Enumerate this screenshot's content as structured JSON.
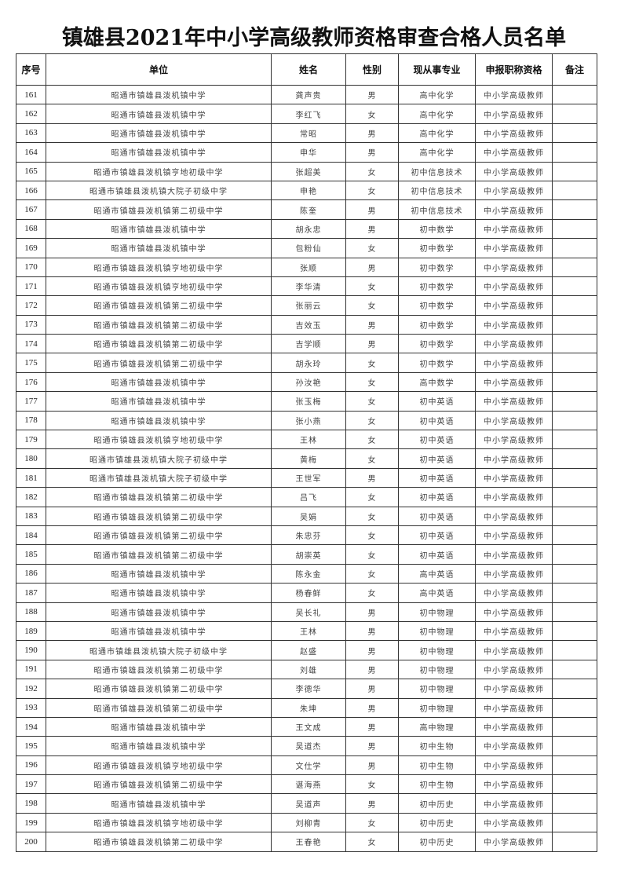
{
  "title": "镇雄县2021年中小学高级教师资格审查合格人员名单",
  "headers": [
    "序号",
    "单位",
    "姓名",
    "性别",
    "现从事专业",
    "申报职称资格",
    "备注"
  ],
  "rows": [
    [
      "161",
      "昭通市镇雄县泼机镇中学",
      "龚声贵",
      "男",
      "高中化学",
      "中小学高级教师",
      ""
    ],
    [
      "162",
      "昭通市镇雄县泼机镇中学",
      "李红飞",
      "女",
      "高中化学",
      "中小学高级教师",
      ""
    ],
    [
      "163",
      "昭通市镇雄县泼机镇中学",
      "常昭",
      "男",
      "高中化学",
      "中小学高级教师",
      ""
    ],
    [
      "164",
      "昭通市镇雄县泼机镇中学",
      "申华",
      "男",
      "高中化学",
      "中小学高级教师",
      ""
    ],
    [
      "165",
      "昭通市镇雄县泼机镇亨地初级中学",
      "张超美",
      "女",
      "初中信息技术",
      "中小学高级教师",
      ""
    ],
    [
      "166",
      "昭通市镇雄县泼机镇大院子初级中学",
      "申艳",
      "女",
      "初中信息技术",
      "中小学高级教师",
      ""
    ],
    [
      "167",
      "昭通市镇雄县泼机镇第二初级中学",
      "陈奎",
      "男",
      "初中信息技术",
      "中小学高级教师",
      ""
    ],
    [
      "168",
      "昭通市镇雄县泼机镇中学",
      "胡永忠",
      "男",
      "初中数学",
      "中小学高级教师",
      ""
    ],
    [
      "169",
      "昭通市镇雄县泼机镇中学",
      "包粉仙",
      "女",
      "初中数学",
      "中小学高级教师",
      ""
    ],
    [
      "170",
      "昭通市镇雄县泼机镇亨地初级中学",
      "张顺",
      "男",
      "初中数学",
      "中小学高级教师",
      ""
    ],
    [
      "171",
      "昭通市镇雄县泼机镇亨地初级中学",
      "李华清",
      "女",
      "初中数学",
      "中小学高级教师",
      ""
    ],
    [
      "172",
      "昭通市镇雄县泼机镇第二初级中学",
      "张丽云",
      "女",
      "初中数学",
      "中小学高级教师",
      ""
    ],
    [
      "173",
      "昭通市镇雄县泼机镇第二初级中学",
      "吉效玉",
      "男",
      "初中数学",
      "中小学高级教师",
      ""
    ],
    [
      "174",
      "昭通市镇雄县泼机镇第二初级中学",
      "吉学顺",
      "男",
      "初中数学",
      "中小学高级教师",
      ""
    ],
    [
      "175",
      "昭通市镇雄县泼机镇第二初级中学",
      "胡永玲",
      "女",
      "初中数学",
      "中小学高级教师",
      ""
    ],
    [
      "176",
      "昭通市镇雄县泼机镇中学",
      "孙汝艳",
      "女",
      "高中数学",
      "中小学高级教师",
      ""
    ],
    [
      "177",
      "昭通市镇雄县泼机镇中学",
      "张玉梅",
      "女",
      "初中英语",
      "中小学高级教师",
      ""
    ],
    [
      "178",
      "昭通市镇雄县泼机镇中学",
      "张小燕",
      "女",
      "初中英语",
      "中小学高级教师",
      ""
    ],
    [
      "179",
      "昭通市镇雄县泼机镇亨地初级中学",
      "王林",
      "女",
      "初中英语",
      "中小学高级教师",
      ""
    ],
    [
      "180",
      "昭通市镇雄县泼机镇大院子初级中学",
      "黄梅",
      "女",
      "初中英语",
      "中小学高级教师",
      ""
    ],
    [
      "181",
      "昭通市镇雄县泼机镇大院子初级中学",
      "王世军",
      "男",
      "初中英语",
      "中小学高级教师",
      ""
    ],
    [
      "182",
      "昭通市镇雄县泼机镇第二初级中学",
      "吕飞",
      "女",
      "初中英语",
      "中小学高级教师",
      ""
    ],
    [
      "183",
      "昭通市镇雄县泼机镇第二初级中学",
      "吴娟",
      "女",
      "初中英语",
      "中小学高级教师",
      ""
    ],
    [
      "184",
      "昭通市镇雄县泼机镇第二初级中学",
      "朱忠芬",
      "女",
      "初中英语",
      "中小学高级教师",
      ""
    ],
    [
      "185",
      "昭通市镇雄县泼机镇第二初级中学",
      "胡崇英",
      "女",
      "初中英语",
      "中小学高级教师",
      ""
    ],
    [
      "186",
      "昭通市镇雄县泼机镇中学",
      "陈永金",
      "女",
      "高中英语",
      "中小学高级教师",
      ""
    ],
    [
      "187",
      "昭通市镇雄县泼机镇中学",
      "杨春鲜",
      "女",
      "高中英语",
      "中小学高级教师",
      ""
    ],
    [
      "188",
      "昭通市镇雄县泼机镇中学",
      "吴长礼",
      "男",
      "初中物理",
      "中小学高级教师",
      ""
    ],
    [
      "189",
      "昭通市镇雄县泼机镇中学",
      "王林",
      "男",
      "初中物理",
      "中小学高级教师",
      ""
    ],
    [
      "190",
      "昭通市镇雄县泼机镇大院子初级中学",
      "赵盛",
      "男",
      "初中物理",
      "中小学高级教师",
      ""
    ],
    [
      "191",
      "昭通市镇雄县泼机镇第二初级中学",
      "刘雄",
      "男",
      "初中物理",
      "中小学高级教师",
      ""
    ],
    [
      "192",
      "昭通市镇雄县泼机镇第二初级中学",
      "李德华",
      "男",
      "初中物理",
      "中小学高级教师",
      ""
    ],
    [
      "193",
      "昭通市镇雄县泼机镇第二初级中学",
      "朱坤",
      "男",
      "初中物理",
      "中小学高级教师",
      ""
    ],
    [
      "194",
      "昭通市镇雄县泼机镇中学",
      "王文成",
      "男",
      "高中物理",
      "中小学高级教师",
      ""
    ],
    [
      "195",
      "昭通市镇雄县泼机镇中学",
      "吴道杰",
      "男",
      "初中生物",
      "中小学高级教师",
      ""
    ],
    [
      "196",
      "昭通市镇雄县泼机镇亨地初级中学",
      "文仕学",
      "男",
      "初中生物",
      "中小学高级教师",
      ""
    ],
    [
      "197",
      "昭通市镇雄县泼机镇第二初级中学",
      "谌海燕",
      "女",
      "初中生物",
      "中小学高级教师",
      ""
    ],
    [
      "198",
      "昭通市镇雄县泼机镇中学",
      "吴道声",
      "男",
      "初中历史",
      "中小学高级教师",
      ""
    ],
    [
      "199",
      "昭通市镇雄县泼机镇亨地初级中学",
      "刘柳青",
      "女",
      "初中历史",
      "中小学高级教师",
      ""
    ],
    [
      "200",
      "昭通市镇雄县泼机镇第二初级中学",
      "王春艳",
      "女",
      "初中历史",
      "中小学高级教师",
      ""
    ]
  ]
}
